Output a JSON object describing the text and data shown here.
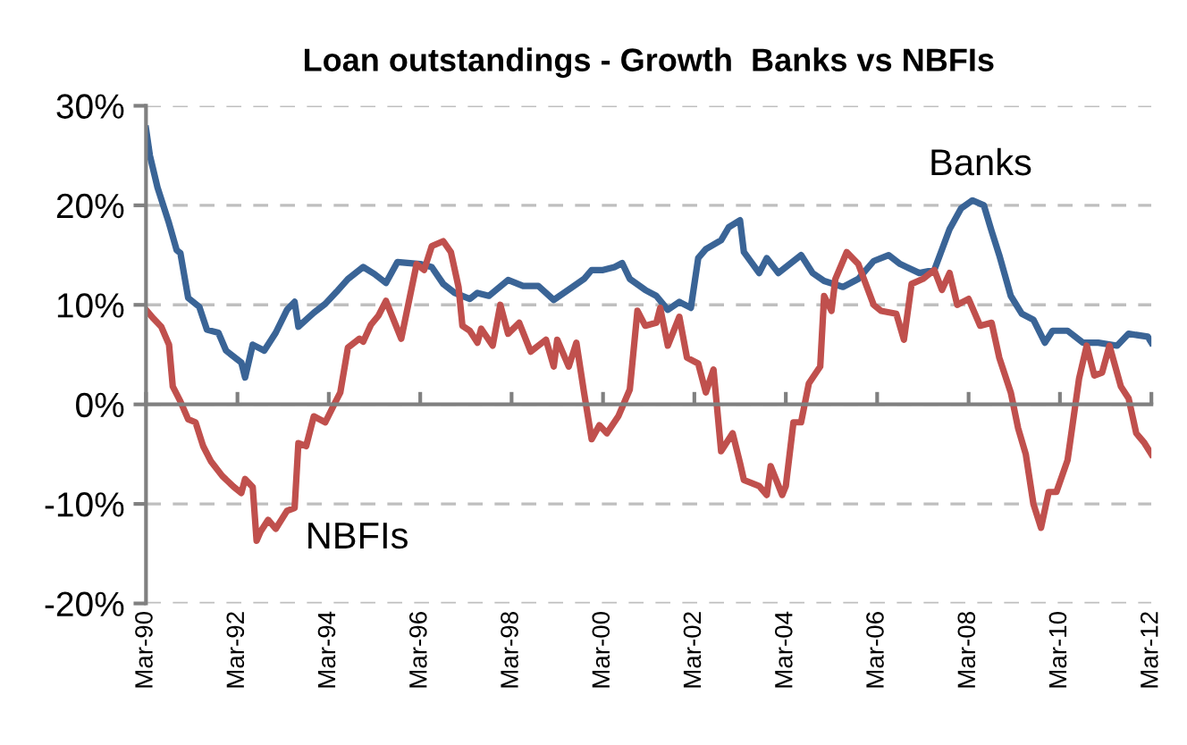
{
  "chart_data": {
    "type": "line",
    "title": "Loan outstandings - Growth  Banks vs NBFIs",
    "series": [
      {
        "name": "Banks",
        "color": "#3a6496",
        "x": [
          "1990-03",
          "1990-04",
          "1990-06",
          "1990-09",
          "1990-11",
          "1990-12",
          "1991-02",
          "1991-05",
          "1991-07",
          "1991-10",
          "1991-12",
          "1992-04",
          "1992-05",
          "1992-07",
          "1992-10",
          "1993-01",
          "1993-04",
          "1993-06",
          "1993-07",
          "1993-11",
          "1994-02",
          "1994-05",
          "1994-08",
          "1994-12",
          "1995-03",
          "1995-06",
          "1995-09",
          "1996-03",
          "1996-06",
          "1996-09",
          "1996-12",
          "1997-04",
          "1997-06",
          "1997-09",
          "1998-02",
          "1998-06",
          "1998-10",
          "1999-02",
          "1999-07",
          "1999-10",
          "1999-12",
          "2000-03",
          "2000-06",
          "2000-08",
          "2000-10",
          "2001-02",
          "2001-05",
          "2001-08",
          "2001-11",
          "2002-02",
          "2002-04",
          "2002-06",
          "2002-10",
          "2002-12",
          "2003-03",
          "2003-04",
          "2003-08",
          "2003-10",
          "2004-01",
          "2004-07",
          "2004-10",
          "2005-01",
          "2005-06",
          "2005-10",
          "2006-02",
          "2006-06",
          "2006-09",
          "2007-02",
          "2007-06",
          "2007-10",
          "2008-01",
          "2008-04",
          "2008-07",
          "2008-09",
          "2008-11",
          "2009-02",
          "2009-05",
          "2009-08",
          "2009-11",
          "2010-01",
          "2010-05",
          "2010-09",
          "2011-01",
          "2011-06",
          "2011-09",
          "2012-02",
          "2012-03"
        ],
        "values": [
          27.7,
          25,
          21.8,
          18.2,
          15.5,
          15.2,
          10.7,
          9.8,
          7.5,
          7.2,
          5.4,
          4.2,
          2.7,
          6,
          5.4,
          7.2,
          9.5,
          10.3,
          7.8,
          9.2,
          10.1,
          11.3,
          12.6,
          13.8,
          13.1,
          12.2,
          14.3,
          14.1,
          13.8,
          12.1,
          11.2,
          10.6,
          11.2,
          10.9,
          12.5,
          11.9,
          11.9,
          10.5,
          11.8,
          12.6,
          13.5,
          13.5,
          13.8,
          14.2,
          12.6,
          11.5,
          10.9,
          9.5,
          10.3,
          9.7,
          14.7,
          15.6,
          16.5,
          17.8,
          18.5,
          15.3,
          13.2,
          14.7,
          13.2,
          15,
          13.2,
          12.4,
          11.8,
          12.6,
          14.4,
          15,
          14.1,
          13.2,
          13.5,
          17.6,
          19.7,
          20.5,
          20,
          17.4,
          15,
          10.9,
          9.1,
          8.5,
          6.2,
          7.4,
          7.4,
          6.2,
          6.2,
          5.9,
          7.1,
          6.8,
          6.2
        ]
      },
      {
        "name": "NBFIs",
        "color": "#c0504d",
        "x": [
          "1990-03",
          "1990-05",
          "1990-07",
          "1990-09",
          "1990-10",
          "1990-12",
          "1991-02",
          "1991-04",
          "1991-06",
          "1991-08",
          "1991-11",
          "1992-02",
          "1992-04",
          "1992-05",
          "1992-07",
          "1992-08",
          "1992-09",
          "1992-11",
          "1993-01",
          "1993-04",
          "1993-06",
          "1993-07",
          "1993-09",
          "1993-11",
          "1994-02",
          "1994-04",
          "1994-06",
          "1994-08",
          "1994-11",
          "1994-12",
          "1995-02",
          "1995-04",
          "1995-06",
          "1995-10",
          "1996-02",
          "1996-04",
          "1996-06",
          "1996-09",
          "1996-11",
          "1997-01",
          "1997-02",
          "1997-04",
          "1997-06",
          "1997-07",
          "1997-10",
          "1997-12",
          "1998-02",
          "1998-05",
          "1998-08",
          "1998-12",
          "1999-02",
          "1999-03",
          "1999-06",
          "1999-08",
          "1999-10",
          "1999-12",
          "2000-02",
          "2000-04",
          "2000-07",
          "2000-10",
          "2000-12",
          "2001-02",
          "2001-05",
          "2001-06",
          "2001-08",
          "2001-11",
          "2002-01",
          "2002-04",
          "2002-06",
          "2002-08",
          "2002-10",
          "2003-01",
          "2003-03",
          "2003-04",
          "2003-08",
          "2003-10",
          "2003-11",
          "2004-02",
          "2004-03",
          "2004-05",
          "2004-07",
          "2004-09",
          "2004-12",
          "2005-01",
          "2005-03",
          "2005-04",
          "2005-07",
          "2005-10",
          "2006-02",
          "2006-04",
          "2006-08",
          "2006-10",
          "2006-12",
          "2007-03",
          "2007-06",
          "2007-08",
          "2007-10",
          "2007-12",
          "2008-03",
          "2008-06",
          "2008-09",
          "2008-11",
          "2009-02",
          "2009-04",
          "2009-06",
          "2009-08",
          "2009-10",
          "2009-12",
          "2010-02",
          "2010-05",
          "2010-08",
          "2010-10",
          "2010-12",
          "2011-02",
          "2011-04",
          "2011-07",
          "2011-09",
          "2011-11",
          "2012-01",
          "2012-03"
        ],
        "values": [
          9.5,
          8.6,
          7.8,
          6,
          1.8,
          0.3,
          -1.5,
          -1.8,
          -4.2,
          -5.7,
          -7.2,
          -8.3,
          -8.9,
          -7.5,
          -8.3,
          -13.7,
          -12.8,
          -11.6,
          -12.5,
          -10.7,
          -10.4,
          -3.9,
          -4.2,
          -1.2,
          -1.8,
          -0.3,
          1.2,
          5.7,
          6.6,
          6.3,
          8,
          8.9,
          10.4,
          6.6,
          14.1,
          13.5,
          15.9,
          16.4,
          15.3,
          11.8,
          7.9,
          7.4,
          6.2,
          7.6,
          5.9,
          10,
          7.1,
          8.2,
          5.3,
          6.5,
          3.8,
          6.5,
          3.8,
          6.2,
          1.2,
          -3.5,
          -2.1,
          -2.9,
          -1.2,
          1.5,
          9.4,
          7.9,
          8.2,
          9.7,
          5.9,
          8.8,
          4.7,
          4.1,
          1.2,
          3.5,
          -4.7,
          -2.9,
          -5.9,
          -7.6,
          -8.2,
          -9.1,
          -6.2,
          -9.1,
          -8.2,
          -1.8,
          -1.8,
          2.1,
          3.8,
          10.9,
          9.4,
          12.6,
          15.3,
          14.1,
          10,
          9.4,
          9.1,
          6.5,
          12.1,
          12.6,
          13.5,
          11.5,
          13.2,
          10,
          10.6,
          7.9,
          8.2,
          4.7,
          1.2,
          -2.4,
          -5,
          -10,
          -12.4,
          -8.8,
          -8.8,
          -5.6,
          2.6,
          5.9,
          2.9,
          3.2,
          5.9,
          1.8,
          0.6,
          -2.9,
          -3.8,
          -5
        ]
      }
    ],
    "xlim": [
      "1990-03",
      "2012-03"
    ],
    "xticks": [
      {
        "value": "1990-03",
        "label": "Mar-90"
      },
      {
        "value": "1992-03",
        "label": "Mar-92"
      },
      {
        "value": "1994-03",
        "label": "Mar-94"
      },
      {
        "value": "1996-03",
        "label": "Mar-96"
      },
      {
        "value": "1998-03",
        "label": "Mar-98"
      },
      {
        "value": "2000-03",
        "label": "Mar-00"
      },
      {
        "value": "2002-03",
        "label": "Mar-02"
      },
      {
        "value": "2004-03",
        "label": "Mar-04"
      },
      {
        "value": "2006-03",
        "label": "Mar-06"
      },
      {
        "value": "2008-03",
        "label": "Mar-08"
      },
      {
        "value": "2010-03",
        "label": "Mar-10"
      },
      {
        "value": "2012-03",
        "label": "Mar-12"
      }
    ],
    "ylim": [
      -20,
      30
    ],
    "yticks": [
      {
        "value": -20,
        "label": "-20%"
      },
      {
        "value": -10,
        "label": "-10%"
      },
      {
        "value": 0,
        "label": "0%"
      },
      {
        "value": 10,
        "label": "10%"
      },
      {
        "value": 20,
        "label": "20%"
      },
      {
        "value": 30,
        "label": "30%"
      }
    ],
    "grid": "y",
    "legend": false,
    "marker": "none",
    "line_style": "solid"
  }
}
